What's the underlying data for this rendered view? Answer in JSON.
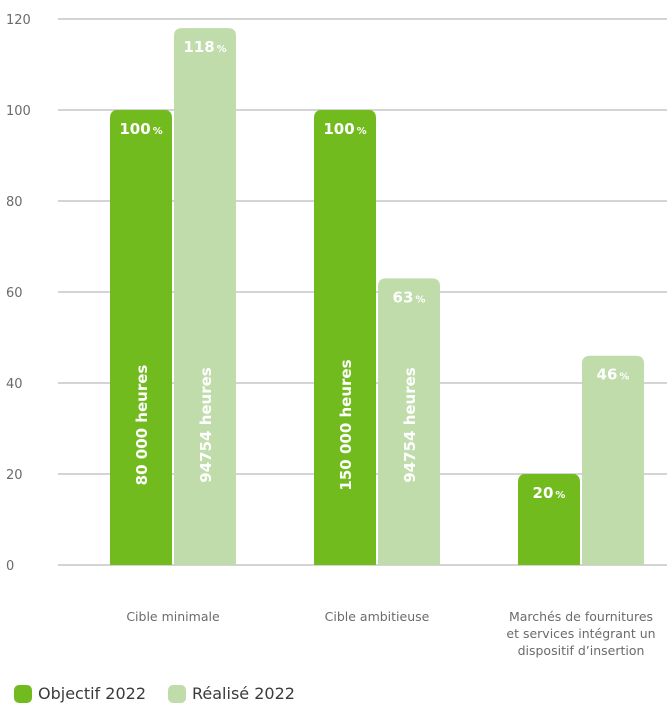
{
  "chart_data": {
    "type": "bar",
    "categories": [
      [
        "Cible minimale"
      ],
      [
        "Cible ambitieuse"
      ],
      [
        "Marchés de fournitures",
        "et services intégrant un",
        "dispositif d’insertion"
      ]
    ],
    "series": [
      {
        "name": "Objectif 2022",
        "color": "#72bb1f",
        "values": [
          100,
          100,
          20
        ],
        "value_labels": [
          "100",
          "100",
          "20"
        ],
        "inner_labels": [
          "80 000 heures",
          "150 000 heures",
          ""
        ]
      },
      {
        "name": "Réalisé 2022",
        "color": "#bfdcaa",
        "values": [
          118,
          63,
          46
        ],
        "value_labels": [
          "118",
          "63",
          "46"
        ],
        "inner_labels": [
          "94754 heures",
          "94754 heures",
          ""
        ]
      }
    ],
    "percent_symbol": "%",
    "yticks": [
      0,
      20,
      40,
      60,
      80,
      100,
      120
    ],
    "ylim": [
      0,
      120
    ],
    "grid": true,
    "legend_position": "bottom-left"
  }
}
